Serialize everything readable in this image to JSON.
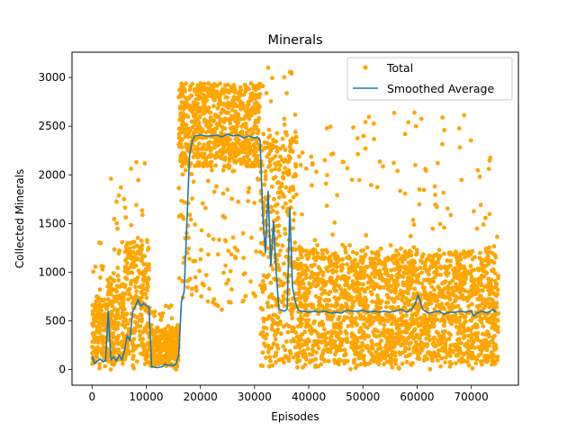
{
  "chart_data": {
    "type": "scatter",
    "title": "Minerals",
    "xlabel": "Episodes",
    "ylabel": "Collected Minerals",
    "xlim": [
      -3700,
      78700
    ],
    "ylim": [
      -160,
      3260
    ],
    "xticks": [
      0,
      10000,
      20000,
      30000,
      40000,
      50000,
      60000,
      70000
    ],
    "xtick_labels": [
      "0",
      "10000",
      "20000",
      "30000",
      "40000",
      "50000",
      "60000",
      "70000"
    ],
    "yticks": [
      0,
      500,
      1000,
      1500,
      2000,
      2500,
      3000
    ],
    "ytick_labels": [
      "0",
      "500",
      "1000",
      "1500",
      "2000",
      "2500",
      "3000"
    ],
    "grid": false,
    "legend_position": "top-right",
    "series": [
      {
        "name": "Total",
        "kind": "scatter",
        "color": "#ffa500",
        "regimes": [
          {
            "x": [
              0,
              2800
            ],
            "y_mid": 120,
            "y_spread": 650,
            "y_max": 1350
          },
          {
            "x": [
              2800,
              6000
            ],
            "y_mid": 120,
            "y_spread": 900,
            "y_max": 1950
          },
          {
            "x": [
              6000,
              10500
            ],
            "y_mid": 650,
            "y_spread": 1250,
            "y_max": 2130
          },
          {
            "x": [
              10500,
              16000
            ],
            "y_mid": 120,
            "y_spread": 350,
            "y_max": 700
          },
          {
            "x": [
              16000,
              31000
            ],
            "y_mid": 2400,
            "y_spread": 900,
            "y_max": 3000
          },
          {
            "x": [
              31000,
              37800
            ],
            "y_mid": 600,
            "y_spread": 2400,
            "y_max": 3100
          },
          {
            "x": [
              37800,
              75000
            ],
            "y_mid": 600,
            "y_spread": 1150,
            "y_max": 2640
          }
        ],
        "outliers": [
          {
            "x": 3500,
            "y": 1960
          },
          {
            "x": 8200,
            "y": 2130
          },
          {
            "x": 32500,
            "y": 3100
          },
          {
            "x": 36800,
            "y": 3040
          },
          {
            "x": 59500,
            "y": 2640
          },
          {
            "x": 59800,
            "y": 2500
          }
        ]
      },
      {
        "name": "Smoothed Average",
        "kind": "line",
        "color": "#1f77b4",
        "x": [
          0,
          500,
          1000,
          1500,
          2000,
          2500,
          3000,
          3500,
          4000,
          4500,
          5000,
          5500,
          6000,
          6500,
          7000,
          7500,
          8000,
          8500,
          9000,
          9500,
          10000,
          10500,
          11000,
          11500,
          12000,
          12500,
          13000,
          13500,
          14000,
          14500,
          15000,
          15500,
          16000,
          16500,
          17000,
          17500,
          18000,
          18500,
          19000,
          20000,
          21000,
          22000,
          23000,
          24000,
          25000,
          26000,
          27000,
          28000,
          29000,
          30000,
          30500,
          31000,
          31500,
          32000,
          32500,
          33000,
          33500,
          34000,
          34500,
          35000,
          35500,
          36000,
          36500,
          37000,
          37500,
          38000,
          38500,
          39000,
          40000,
          41000,
          42000,
          43000,
          44000,
          45000,
          46000,
          47000,
          48000,
          49000,
          50000,
          51000,
          52000,
          53000,
          54000,
          55000,
          56000,
          57000,
          58000,
          59000,
          59700,
          60200,
          61000,
          62000,
          63000,
          64000,
          65000,
          66000,
          67000,
          68000,
          69000,
          70000,
          70500,
          71000,
          72000,
          73000,
          74000,
          74500
        ],
        "y": [
          140,
          60,
          90,
          110,
          80,
          90,
          600,
          100,
          130,
          90,
          150,
          100,
          200,
          350,
          300,
          600,
          650,
          720,
          650,
          680,
          660,
          640,
          30,
          25,
          20,
          25,
          30,
          60,
          40,
          50,
          40,
          60,
          150,
          700,
          800,
          1500,
          2200,
          2350,
          2400,
          2410,
          2400,
          2400,
          2410,
          2390,
          2420,
          2400,
          2410,
          2380,
          2400,
          2380,
          2390,
          2360,
          1600,
          1200,
          1830,
          1070,
          1520,
          1000,
          620,
          610,
          600,
          620,
          1660,
          850,
          700,
          620,
          600,
          600,
          590,
          600,
          590,
          600,
          580,
          590,
          580,
          610,
          600,
          600,
          610,
          590,
          600,
          590,
          600,
          590,
          600,
          620,
          590,
          620,
          680,
          770,
          620,
          580,
          590,
          600,
          570,
          590,
          590,
          600,
          590,
          600,
          550,
          580,
          600,
          580,
          620,
          590
        ]
      }
    ]
  }
}
